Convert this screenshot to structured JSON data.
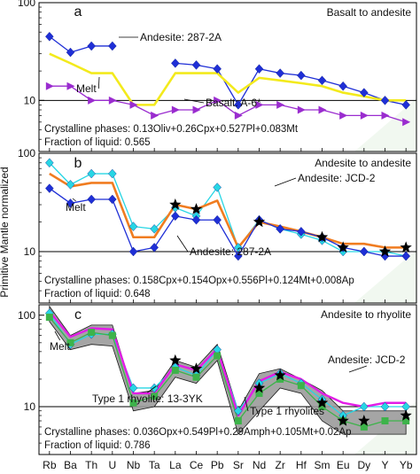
{
  "figure": {
    "ylabel": "Primitive Mantle normalized",
    "elements": [
      "Rb",
      "Ba",
      "Th",
      "U",
      "Nb",
      "Ta",
      "La",
      "Ce",
      "Pb",
      "Sr",
      "Nd",
      "Zr",
      "Hf",
      "Sm",
      "Eu",
      "Dy",
      "Y",
      "Yb"
    ]
  },
  "chart_data": [
    {
      "type": "line",
      "panel_letter": "a",
      "title": "Basalt to andesite",
      "scale": "log",
      "ylim": [
        3,
        100
      ],
      "yticks": [
        10,
        100
      ],
      "reference_line": 10,
      "caption_lines": [
        "Crystalline phases: 0.13Oliv+0.26Cpx+0.527Pl+0.083Mt",
        "Fraction of liquid: 0.565"
      ],
      "series": [
        {
          "name": "Andesite: 287-2A",
          "color": "#1f2fd6",
          "marker": "diamond",
          "width": 1.3,
          "values": [
            45,
            31,
            36,
            36,
            null,
            null,
            24,
            23,
            21,
            9,
            21,
            19,
            18,
            16,
            14,
            12,
            10,
            9
          ]
        },
        {
          "name": "Melt",
          "color": "#f3ea1c",
          "marker": "none",
          "width": 2.6,
          "values": [
            30,
            24,
            19,
            19,
            9,
            9,
            19,
            19,
            19,
            12,
            17,
            16,
            15,
            14,
            12,
            11,
            10,
            10
          ]
        },
        {
          "name": "Basalt: A-6*",
          "color": "#9a2ccf",
          "marker": "triangle",
          "width": 1.3,
          "values": [
            14,
            14,
            10,
            10,
            9,
            7,
            8,
            8,
            10,
            7,
            9,
            9,
            8,
            8,
            7,
            7,
            7,
            6
          ]
        }
      ],
      "annotations": [
        {
          "text": "Andesite: 287-2A",
          "series": "Andesite: 287-2A"
        },
        {
          "text": "Melt",
          "series": "Melt"
        },
        {
          "text": "Basalt: A-6*",
          "series": "Basalt: A-6*"
        }
      ]
    },
    {
      "type": "line",
      "panel_letter": "b",
      "title": "Andesite to andesite",
      "scale": "log",
      "ylim": [
        3,
        100
      ],
      "yticks": [
        10,
        100
      ],
      "reference_line": 10,
      "caption_lines": [
        "Crystalline phases: 0.158Cpx+0.154Opx+0.556Pl+0.124Mt+0.008Ap",
        "Fraction of liquid: 0.648"
      ],
      "series": [
        {
          "name": "Andesite: JCD-2",
          "color": "#27d6e4",
          "marker": "diamond",
          "width": 1.3,
          "values": [
            80,
            48,
            62,
            62,
            18,
            17,
            28,
            23,
            45,
            11,
            21,
            17,
            15,
            13,
            10,
            10,
            10,
            9
          ]
        },
        {
          "name": "Melt",
          "color": "#f07c20",
          "marker": "none",
          "width": 2.6,
          "values": [
            62,
            46,
            50,
            50,
            14,
            14,
            30,
            27,
            33,
            11,
            20,
            18,
            16,
            14,
            12,
            12,
            11,
            11
          ]
        },
        {
          "name": "Andesite: 287-2A",
          "color": "#1f2fd6",
          "marker": "diamond",
          "width": 1.3,
          "values": [
            44,
            31,
            34,
            34,
            10,
            11,
            23,
            21,
            21,
            9,
            21,
            17,
            16,
            14,
            11,
            10,
            9,
            9
          ]
        },
        {
          "name": "model points",
          "color": "#000000",
          "marker": "star",
          "width": 0,
          "values": [
            null,
            null,
            null,
            null,
            null,
            null,
            30,
            27,
            null,
            null,
            20,
            null,
            null,
            14,
            11,
            null,
            10,
            11
          ]
        }
      ],
      "annotations": [
        {
          "text": "Andesite: JCD-2",
          "series": "Andesite: JCD-2"
        },
        {
          "text": "Melt",
          "series": "Melt"
        },
        {
          "text": "Andesite: 287-2A",
          "series": "Andesite: 287-2A"
        }
      ]
    },
    {
      "type": "line",
      "panel_letter": "c",
      "title": "Andesite to rhyolite",
      "scale": "log",
      "ylim": [
        3,
        130
      ],
      "yticks": [
        10,
        100
      ],
      "reference_line": 10,
      "caption_lines": [
        "Crystalline phases: 0.036Opx+0.549Pl+0.29Amph+0.105Mt+0.02Ap",
        "Fraction of liquid: 0.786"
      ],
      "band": {
        "name": "Type 1 rhyolites",
        "color": "#9c9c9c",
        "upper": [
          125,
          60,
          78,
          78,
          14,
          15,
          32,
          27,
          48,
          9,
          23,
          26,
          20,
          15,
          9,
          9,
          9,
          9
        ],
        "lower": [
          85,
          42,
          48,
          46,
          9,
          10,
          21,
          18,
          32,
          5,
          9,
          16,
          14,
          7,
          5,
          5,
          5,
          5
        ]
      },
      "series": [
        {
          "name": "Andesite: JCD-2",
          "color": "#27d6e4",
          "marker": "diamond",
          "width": 1.3,
          "values": [
            105,
            48,
            62,
            62,
            16,
            16,
            27,
            22,
            42,
            9,
            18,
            23,
            18,
            12,
            8,
            10,
            10,
            10
          ]
        },
        {
          "name": "Melt",
          "color": "#e21de6",
          "marker": "none",
          "width": 2.4,
          "values": [
            110,
            58,
            72,
            70,
            14,
            14,
            29,
            25,
            43,
            8,
            19,
            24,
            20,
            14,
            11,
            10,
            11,
            11
          ]
        },
        {
          "name": "Type 1 rhyolite: 13-3YK",
          "color": "#3db34a",
          "marker": "square",
          "width": 1.3,
          "values": [
            95,
            50,
            65,
            60,
            11,
            13,
            25,
            21,
            36,
            7,
            14,
            20,
            17,
            10,
            7,
            6,
            7,
            7
          ]
        },
        {
          "name": "model points",
          "color": "#000000",
          "marker": "star",
          "width": 0,
          "values": [
            null,
            null,
            null,
            null,
            null,
            null,
            32,
            26,
            null,
            null,
            16,
            22,
            null,
            11,
            7,
            7,
            null,
            8
          ]
        }
      ],
      "annotations": [
        {
          "text": "Melt",
          "series": "Melt"
        },
        {
          "text": "Andesite: JCD-2",
          "series": "Andesite: JCD-2"
        },
        {
          "text": "Type 1 rhyolite: 13-3YK",
          "series": "Type 1 rhyolite: 13-3YK"
        },
        {
          "text": "Type 1 rhyolites",
          "series": "Type 1 rhyolites"
        }
      ]
    }
  ]
}
